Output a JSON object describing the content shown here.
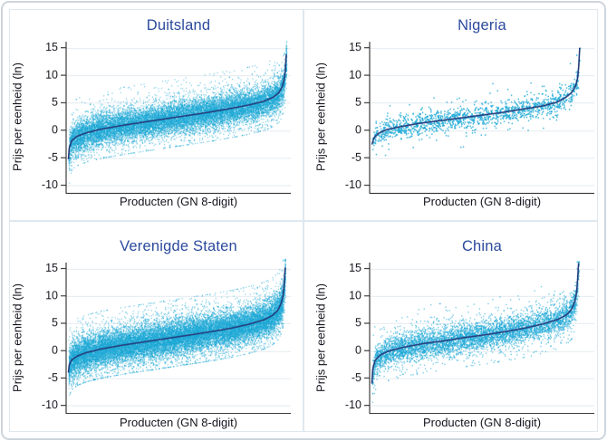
{
  "figure": {
    "background": "#ffffff",
    "outer_border_color": "#cdd5dc",
    "panel_border_color": "#dfe8ef",
    "grid_color": "#e5ebf0",
    "axis_color": "#2b2b2b",
    "title_color": "#2b4a9d",
    "text_color": "#15151e",
    "scatter_color": "#1aa7d6",
    "line_color": "#253d7d"
  },
  "chart_data": [
    {
      "type": "scatter",
      "title": "Duitsland",
      "xlabel": "Producten (GN 8-digit)",
      "ylabel": "Prijs per eenheid (ln)",
      "yticks": [
        -10,
        -5,
        0,
        5,
        10,
        15
      ],
      "ylim": [
        -11.5,
        16.2
      ],
      "x_tick_labels": [],
      "n_points": 16000,
      "noise_sd": 1.35,
      "x_end_frac": 0.98,
      "median_line": [
        [
          0,
          -5.3
        ],
        [
          0.004,
          -3.2
        ],
        [
          0.015,
          -1.9
        ],
        [
          0.04,
          -1.1
        ],
        [
          0.08,
          -0.5
        ],
        [
          0.15,
          0.2
        ],
        [
          0.25,
          0.9
        ],
        [
          0.35,
          1.5
        ],
        [
          0.45,
          2.1
        ],
        [
          0.55,
          2.7
        ],
        [
          0.65,
          3.3
        ],
        [
          0.75,
          4.0
        ],
        [
          0.83,
          4.6
        ],
        [
          0.9,
          5.3
        ],
        [
          0.94,
          6.0
        ],
        [
          0.965,
          6.8
        ],
        [
          0.98,
          7.8
        ],
        [
          0.99,
          9.2
        ],
        [
          0.995,
          10.8
        ],
        [
          1,
          13.8
        ]
      ]
    },
    {
      "type": "scatter",
      "title": "Nigeria",
      "xlabel": "Producten (GN 8-digit)",
      "ylabel": "Prijs per eenheid (ln)",
      "yticks": [
        -10,
        -5,
        0,
        5,
        10,
        15
      ],
      "ylim": [
        -11.5,
        16.2
      ],
      "x_tick_labels": [],
      "n_points": 1500,
      "noise_sd": 0.95,
      "x_end_frac": 0.935,
      "median_line": [
        [
          0,
          -2.6
        ],
        [
          0.01,
          -1.4
        ],
        [
          0.03,
          -0.6
        ],
        [
          0.07,
          0.1
        ],
        [
          0.13,
          0.6
        ],
        [
          0.22,
          1.2
        ],
        [
          0.32,
          1.7
        ],
        [
          0.42,
          2.2
        ],
        [
          0.52,
          2.7
        ],
        [
          0.62,
          3.2
        ],
        [
          0.72,
          3.8
        ],
        [
          0.82,
          4.4
        ],
        [
          0.89,
          5.1
        ],
        [
          0.93,
          5.9
        ],
        [
          0.96,
          6.8
        ],
        [
          0.98,
          8.0
        ],
        [
          0.99,
          9.5
        ],
        [
          0.995,
          11.5
        ],
        [
          1,
          15.0
        ]
      ]
    },
    {
      "type": "scatter",
      "title": "Verenigde Staten",
      "xlabel": "Producten (GN 8-digit)",
      "ylabel": "Prijs per eenheid (ln)",
      "yticks": [
        -10,
        -5,
        0,
        5,
        10,
        15
      ],
      "ylim": [
        -11.5,
        16.8
      ],
      "x_tick_labels": [],
      "n_points": 21000,
      "noise_sd": 1.5,
      "x_end_frac": 0.975,
      "median_line": [
        [
          0,
          -4.0
        ],
        [
          0.004,
          -2.6
        ],
        [
          0.015,
          -1.7
        ],
        [
          0.04,
          -1.0
        ],
        [
          0.08,
          -0.4
        ],
        [
          0.15,
          0.3
        ],
        [
          0.25,
          1.0
        ],
        [
          0.35,
          1.6
        ],
        [
          0.45,
          2.2
        ],
        [
          0.55,
          2.8
        ],
        [
          0.65,
          3.4
        ],
        [
          0.75,
          4.1
        ],
        [
          0.83,
          4.8
        ],
        [
          0.9,
          5.6
        ],
        [
          0.94,
          6.4
        ],
        [
          0.965,
          7.3
        ],
        [
          0.98,
          8.5
        ],
        [
          0.99,
          10.0
        ],
        [
          0.995,
          12.0
        ],
        [
          1,
          15.2
        ]
      ]
    },
    {
      "type": "scatter",
      "title": "China",
      "xlabel": "Producten (GN 8-digit)",
      "ylabel": "Prijs per eenheid (ln)",
      "yticks": [
        -10,
        -5,
        0,
        5,
        10,
        15
      ],
      "ylim": [
        -11.5,
        16.3
      ],
      "x_tick_labels": [],
      "n_points": 6000,
      "noise_sd": 1.25,
      "x_end_frac": 0.93,
      "median_line": [
        [
          0,
          -6.0
        ],
        [
          0.004,
          -3.4
        ],
        [
          0.015,
          -1.8
        ],
        [
          0.04,
          -0.8
        ],
        [
          0.08,
          -0.1
        ],
        [
          0.15,
          0.6
        ],
        [
          0.25,
          1.3
        ],
        [
          0.35,
          1.8
        ],
        [
          0.45,
          2.4
        ],
        [
          0.55,
          2.9
        ],
        [
          0.65,
          3.5
        ],
        [
          0.75,
          4.2
        ],
        [
          0.83,
          4.9
        ],
        [
          0.9,
          5.7
        ],
        [
          0.94,
          6.5
        ],
        [
          0.965,
          7.5
        ],
        [
          0.98,
          8.8
        ],
        [
          0.99,
          10.5
        ],
        [
          0.995,
          12.8
        ],
        [
          1,
          16.0
        ]
      ]
    }
  ]
}
